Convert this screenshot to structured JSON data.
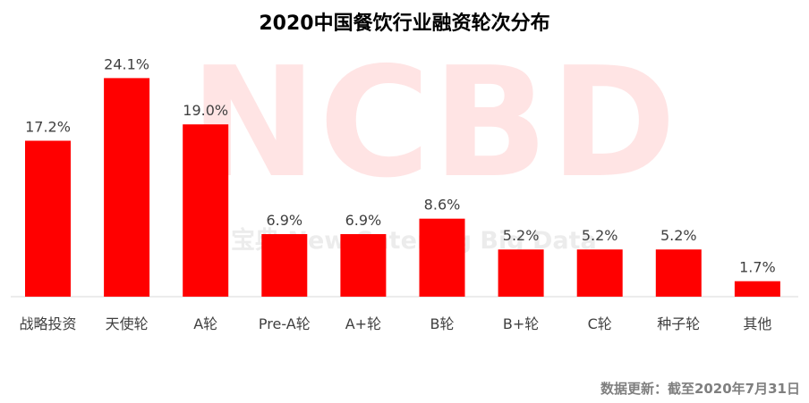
{
  "chart_data": {
    "type": "bar",
    "title": "2020中国餐饮行业融资轮次分布",
    "categories": [
      "战略投资",
      "天使轮",
      "A轮",
      "Pre-A轮",
      "A+轮",
      "B轮",
      "B+轮",
      "C轮",
      "种子轮",
      "其他"
    ],
    "values": [
      17.2,
      24.1,
      19.0,
      6.9,
      6.9,
      8.6,
      5.2,
      5.2,
      5.2,
      1.7
    ],
    "data_labels": [
      "17.2%",
      "24.1%",
      "19.0%",
      "6.9%",
      "6.9%",
      "8.6%",
      "5.2%",
      "5.2%",
      "5.2%",
      "1.7%"
    ],
    "unit": "%",
    "ylim": [
      0,
      27
    ],
    "grid": false,
    "colors": {
      "bar": "#ff0000",
      "axis": "#d9d9d9",
      "label": "#404040"
    }
  },
  "watermark": {
    "logo_text": "NCBD",
    "tagline": "宝典 New Catering Big Data"
  },
  "footnote": "数据更新：截至2020年7月31日"
}
